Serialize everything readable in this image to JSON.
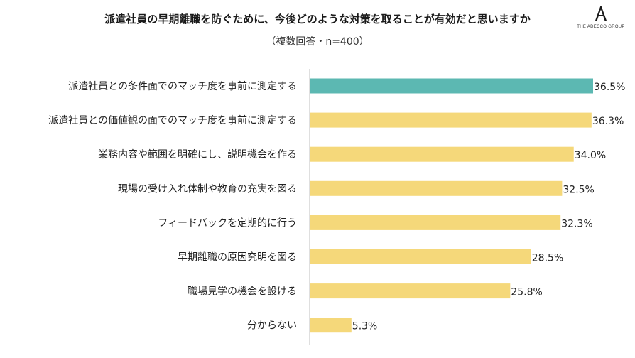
{
  "header": {
    "title": "派遣社員の早期離職を防ぐために、今後どのような対策を取ることが有効だと思いますか",
    "subtitle": "（複数回答・n=400）"
  },
  "logo": {
    "name": "adecco-logo-icon",
    "text": "THE ADECCO GROUP"
  },
  "colors": {
    "highlight": "#5cb8b2",
    "bar": "#f5d87a",
    "axis": "#bfbfbf"
  },
  "chart_data": {
    "type": "bar",
    "orientation": "horizontal",
    "categories": [
      "派遣社員との条件面でのマッチ度を事前に測定する",
      "派遣社員との価値観の面でのマッチ度を事前に測定する",
      "業務内容や範囲を明確にし、説明機会を作る",
      "現場の受け入れ体制や教育の充実を図る",
      "フィードバックを定期的に行う",
      "早期離職の原因究明を図る",
      "職場見学の機会を設ける",
      "分からない"
    ],
    "values": [
      36.5,
      36.3,
      34.0,
      32.5,
      32.3,
      28.5,
      25.8,
      5.3
    ],
    "value_labels": [
      "36.5%",
      "36.3%",
      "34.0%",
      "32.5%",
      "32.3%",
      "28.5%",
      "25.8%",
      "5.3%"
    ],
    "highlight_index": 0,
    "xlim": [
      0,
      36.5
    ],
    "grid": false,
    "legend": "none"
  }
}
